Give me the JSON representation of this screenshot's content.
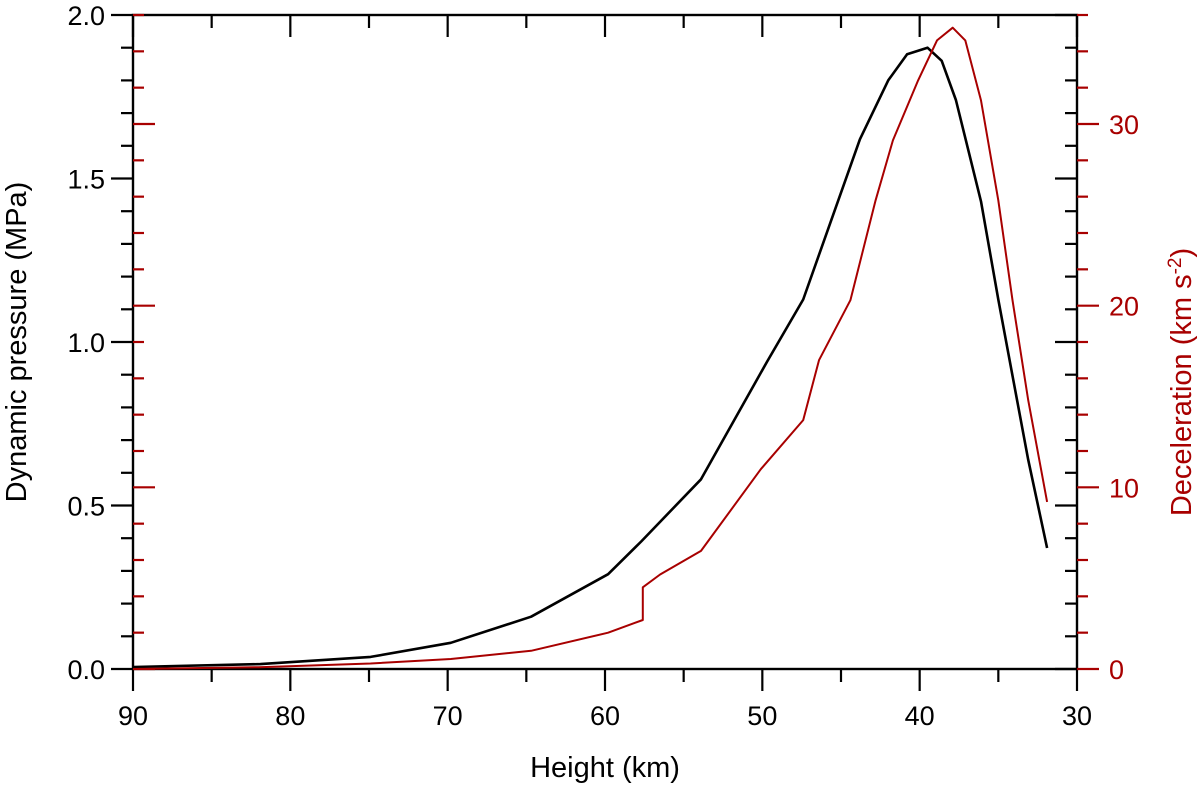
{
  "chart_data": {
    "type": "line",
    "title": "",
    "xlabel": "Height (km)",
    "ylabel": "Dynamic pressure (MPa)",
    "y2label_main": "Deceleration (km s",
    "y2label_sup": "-2",
    "y2label_close": ")",
    "xlim": [
      90,
      30
    ],
    "ylim": [
      0,
      2.0
    ],
    "y2lim": [
      0,
      36
    ],
    "x_ticks": [
      90,
      80,
      70,
      60,
      50,
      40,
      30
    ],
    "x_tick_labels": [
      "90",
      "80",
      "70",
      "60",
      "50",
      "40",
      "30"
    ],
    "x_minor_step": 5,
    "y_ticks": [
      0.0,
      0.5,
      1.0,
      1.5,
      2.0
    ],
    "y_tick_labels": [
      "0.0",
      "0.5",
      "1.0",
      "1.5",
      "2.0"
    ],
    "y_minor_step": 0.1,
    "y2_ticks": [
      0,
      10,
      20,
      30
    ],
    "y2_tick_labels": [
      "0",
      "10",
      "20",
      "30"
    ],
    "y2_minor_step": 2,
    "grid": false,
    "legend": null,
    "series": [
      {
        "name": "Dynamic pressure",
        "axis": "left",
        "color": "#000000",
        "x": [
          90,
          81.9,
          74.9,
          69.8,
          64.7,
          59.8,
          57.7,
          53.9,
          51.8,
          49.7,
          47.4,
          45.2,
          43.8,
          42.0,
          40.8,
          39.5,
          38.6,
          37.7,
          36.1,
          35.0,
          33.8,
          33.1,
          31.9
        ],
        "y": [
          0.006,
          0.015,
          0.037,
          0.08,
          0.16,
          0.29,
          0.39,
          0.58,
          0.76,
          0.94,
          1.13,
          1.43,
          1.62,
          1.8,
          1.88,
          1.9,
          1.86,
          1.74,
          1.43,
          1.13,
          0.82,
          0.64,
          0.37
        ]
      },
      {
        "name": "Deceleration",
        "axis": "right",
        "color": "#A80000",
        "x": [
          90,
          82,
          74.9,
          69.8,
          64.7,
          59.8,
          57.6,
          57.6,
          56.5,
          53.9,
          50.1,
          47.4,
          46.4,
          44.4,
          42.8,
          41.7,
          40.1,
          38.9,
          37.9,
          37.1,
          36.1,
          35.0,
          34.1,
          33.1,
          31.9
        ],
        "y": [
          0.0,
          0.1,
          0.3,
          0.55,
          1.0,
          2.0,
          2.7,
          4.5,
          5.2,
          6.5,
          11.0,
          13.7,
          17.0,
          20.3,
          25.8,
          29.1,
          32.4,
          34.6,
          35.3,
          34.6,
          31.3,
          25.8,
          20.3,
          14.8,
          9.2
        ]
      }
    ]
  },
  "colors": {
    "axis": "#000000",
    "secondary": "#A80000",
    "background": "#ffffff"
  }
}
